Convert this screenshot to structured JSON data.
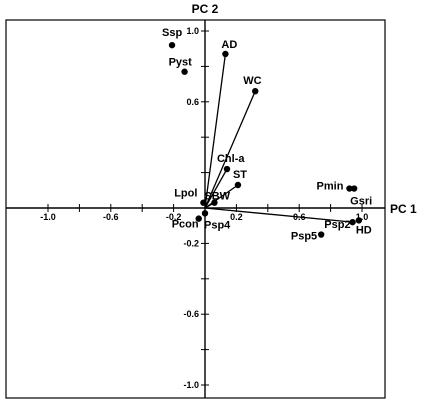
{
  "chart_data": {
    "type": "scatter",
    "title": "",
    "xlabel": "PC 1",
    "ylabel": "PC 2",
    "xlim": [
      -1.1,
      1.1
    ],
    "ylim": [
      -1.05,
      1.05
    ],
    "grid": false,
    "x_ticks": [
      -1.0,
      -0.6,
      -0.2,
      0.2,
      0.6,
      1.0
    ],
    "x_tick_labels": [
      "-1.0",
      "-0.6",
      "-0.2",
      "0.2",
      "0.6",
      "1.0"
    ],
    "y_ticks": [
      1.0,
      0.6,
      -0.2,
      -0.6,
      -1.0
    ],
    "y_tick_labels": [
      "1.0",
      "0.6",
      "-0.2",
      "-0.6",
      "-1.0"
    ],
    "vectors": [
      {
        "label": "AD",
        "x": 0.13,
        "y": 0.87
      },
      {
        "label": "WC",
        "x": 0.32,
        "y": 0.66
      },
      {
        "label": "Chl-a",
        "x": 0.14,
        "y": 0.22
      },
      {
        "label": "ST",
        "x": 0.21,
        "y": 0.13
      },
      {
        "label": "SBW",
        "x": 0.06,
        "y": 0.03
      },
      {
        "label": "Psp2",
        "x": 0.94,
        "y": -0.08
      }
    ],
    "points": [
      {
        "label": "Ssp",
        "x": -0.21,
        "y": 0.92
      },
      {
        "label": "Pyst",
        "x": -0.13,
        "y": 0.77
      },
      {
        "label": "Lpol",
        "x": -0.01,
        "y": 0.03
      },
      {
        "label": "Psp4",
        "x": 0.0,
        "y": -0.03
      },
      {
        "label": "Pcon",
        "x": -0.04,
        "y": -0.06
      },
      {
        "label": "Pmin",
        "x": 0.92,
        "y": 0.11
      },
      {
        "label": "Gsri",
        "x": 0.95,
        "y": 0.11
      },
      {
        "label": "HD",
        "x": 0.98,
        "y": -0.07
      },
      {
        "label": "Psp5",
        "x": 0.74,
        "y": -0.15
      }
    ]
  }
}
